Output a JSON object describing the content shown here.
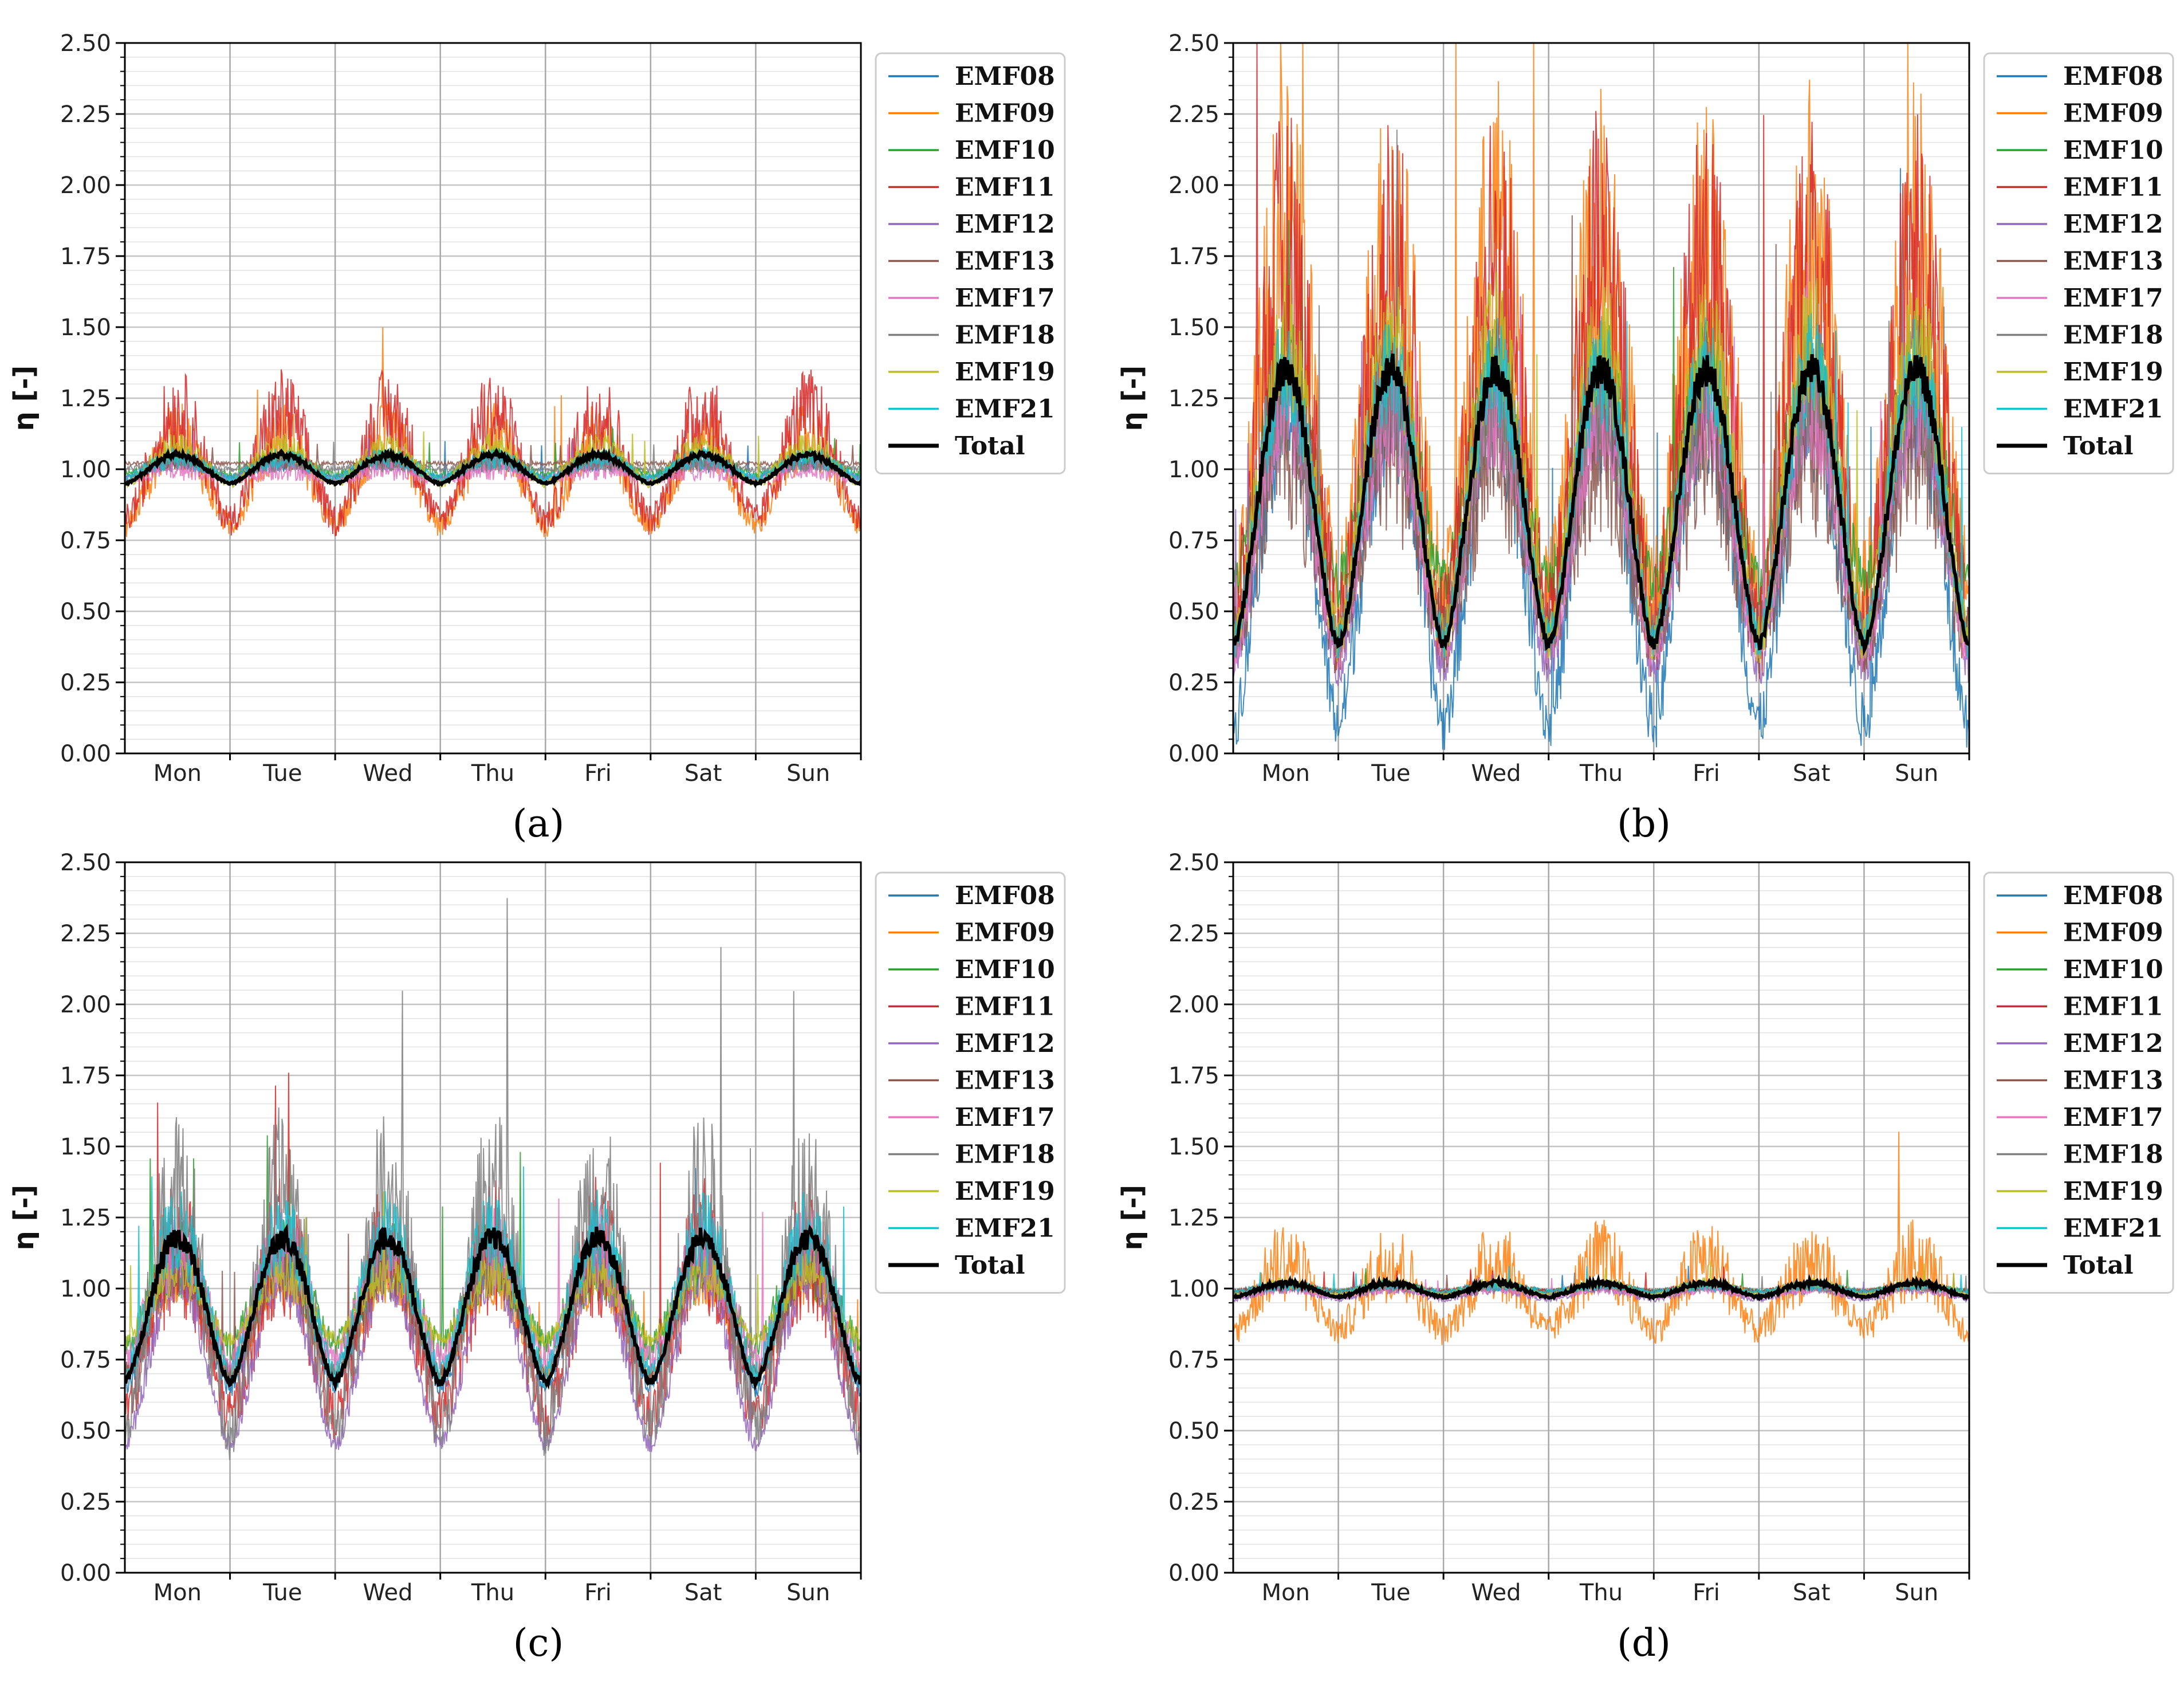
{
  "figure": {
    "colors": {
      "EMF08": "#1f77b4",
      "EMF09": "#ff7f0e",
      "EMF10": "#2ca02c",
      "EMF11": "#d62728",
      "EMF12": "#9467bd",
      "EMF13": "#8c564b",
      "EMF17": "#e377c2",
      "EMF18": "#7f7f7f",
      "EMF19": "#bcbd22",
      "EMF21": "#17becf",
      "Total": "#000000"
    }
  },
  "chart_data": [
    {
      "type": "line",
      "caption": "(a)",
      "ylabel": "η [-]",
      "ylim": [
        0,
        2.5
      ],
      "yticks": [
        "0.00",
        "0.25",
        "0.50",
        "0.75",
        "1.00",
        "1.25",
        "1.50",
        "1.75",
        "2.00",
        "2.25",
        "2.50"
      ],
      "categories": [
        "Mon",
        "Tue",
        "Wed",
        "Thu",
        "Fri",
        "Sat",
        "Sun"
      ],
      "legend": [
        "EMF08",
        "EMF09",
        "EMF10",
        "EMF11",
        "EMF12",
        "EMF13",
        "EMF17",
        "EMF18",
        "EMF19",
        "EMF21",
        "Total"
      ],
      "series": [
        {
          "name": "EMF08",
          "day": 1.03,
          "night": 0.97,
          "noise": 0.04
        },
        {
          "name": "EMF09",
          "day": 1.12,
          "night": 0.8,
          "noise": 0.12
        },
        {
          "name": "EMF10",
          "day": 1.04,
          "night": 0.98,
          "noise": 0.04
        },
        {
          "name": "EMF11",
          "day": 1.2,
          "night": 0.82,
          "noise": 0.16
        },
        {
          "name": "EMF12",
          "day": 1.02,
          "night": 0.97,
          "noise": 0.03
        },
        {
          "name": "EMF13",
          "day": 1.02,
          "night": 1.02,
          "noise": 0.02
        },
        {
          "name": "EMF17",
          "day": 1.0,
          "night": 0.96,
          "noise": 0.04
        },
        {
          "name": "EMF18",
          "day": 1.02,
          "night": 1.0,
          "noise": 0.03
        },
        {
          "name": "EMF19",
          "day": 1.08,
          "night": 0.95,
          "noise": 0.05
        },
        {
          "name": "EMF21",
          "day": 1.04,
          "night": 0.97,
          "noise": 0.04
        },
        {
          "name": "Total",
          "day": 1.05,
          "night": 0.95,
          "noise": 0.01
        }
      ]
    },
    {
      "type": "line",
      "caption": "(b)",
      "ylabel": "η [-]",
      "ylim": [
        0,
        2.5
      ],
      "yticks": [
        "0.00",
        "0.25",
        "0.50",
        "0.75",
        "1.00",
        "1.25",
        "1.50",
        "1.75",
        "2.00",
        "2.25",
        "2.50"
      ],
      "categories": [
        "Mon",
        "Tue",
        "Wed",
        "Thu",
        "Fri",
        "Sat",
        "Sun"
      ],
      "legend": [
        "EMF08",
        "EMF09",
        "EMF10",
        "EMF11",
        "EMF12",
        "EMF13",
        "EMF17",
        "EMF18",
        "EMF19",
        "EMF21",
        "Total"
      ],
      "series": [
        {
          "name": "EMF08",
          "day": 1.25,
          "night": 0.1,
          "noise": 0.3
        },
        {
          "name": "EMF09",
          "day": 1.8,
          "night": 0.55,
          "noise": 0.6
        },
        {
          "name": "EMF10",
          "day": 1.3,
          "night": 0.6,
          "noise": 0.25
        },
        {
          "name": "EMF11",
          "day": 1.7,
          "night": 0.45,
          "noise": 0.6
        },
        {
          "name": "EMF12",
          "day": 1.2,
          "night": 0.3,
          "noise": 0.2
        },
        {
          "name": "EMF13",
          "day": 1.1,
          "night": 0.4,
          "noise": 0.35
        },
        {
          "name": "EMF17",
          "day": 1.2,
          "night": 0.35,
          "noise": 0.2
        },
        {
          "name": "EMF18",
          "day": 1.3,
          "night": 0.4,
          "noise": 0.25
        },
        {
          "name": "EMF19",
          "day": 1.45,
          "night": 0.4,
          "noise": 0.25
        },
        {
          "name": "EMF21",
          "day": 1.35,
          "night": 0.4,
          "noise": 0.2
        },
        {
          "name": "Total",
          "day": 1.35,
          "night": 0.38,
          "noise": 0.06
        }
      ]
    },
    {
      "type": "line",
      "caption": "(c)",
      "ylabel": "η [-]",
      "ylim": [
        0,
        2.5
      ],
      "yticks": [
        "0.00",
        "0.25",
        "0.50",
        "0.75",
        "1.00",
        "1.25",
        "1.50",
        "1.75",
        "2.00",
        "2.25",
        "2.50"
      ],
      "categories": [
        "Mon",
        "Tue",
        "Wed",
        "Thu",
        "Fri",
        "Sat",
        "Sun"
      ],
      "legend": [
        "EMF08",
        "EMF09",
        "EMF10",
        "EMF11",
        "EMF12",
        "EMF13",
        "EMF17",
        "EMF18",
        "EMF19",
        "EMF21",
        "Total"
      ],
      "series": [
        {
          "name": "EMF08",
          "day": 1.1,
          "night": 0.65,
          "noise": 0.1
        },
        {
          "name": "EMF09",
          "day": 1.02,
          "night": 0.7,
          "noise": 0.08
        },
        {
          "name": "EMF10",
          "day": 1.1,
          "night": 0.8,
          "noise": 0.15
        },
        {
          "name": "EMF11",
          "day": 1.15,
          "night": 0.55,
          "noise": 0.25
        },
        {
          "name": "EMF12",
          "day": 1.05,
          "night": 0.45,
          "noise": 0.1
        },
        {
          "name": "EMF13",
          "day": 1.1,
          "night": 0.7,
          "noise": 0.12
        },
        {
          "name": "EMF17",
          "day": 1.15,
          "night": 0.75,
          "noise": 0.15
        },
        {
          "name": "EMF18",
          "day": 1.35,
          "night": 0.5,
          "noise": 0.3
        },
        {
          "name": "EMF19",
          "day": 1.05,
          "night": 0.82,
          "noise": 0.08
        },
        {
          "name": "EMF21",
          "day": 1.2,
          "night": 0.7,
          "noise": 0.15
        },
        {
          "name": "Total",
          "day": 1.18,
          "night": 0.67,
          "noise": 0.04
        }
      ]
    },
    {
      "type": "line",
      "caption": "(d)",
      "ylabel": "η [-]",
      "ylim": [
        0,
        2.5
      ],
      "yticks": [
        "0.00",
        "0.25",
        "0.50",
        "0.75",
        "1.00",
        "1.25",
        "1.50",
        "1.75",
        "2.00",
        "2.25",
        "2.50"
      ],
      "categories": [
        "Mon",
        "Tue",
        "Wed",
        "Thu",
        "Fri",
        "Sat",
        "Sun"
      ],
      "legend": [
        "EMF08",
        "EMF09",
        "EMF10",
        "EMF11",
        "EMF12",
        "EMF13",
        "EMF17",
        "EMF18",
        "EMF19",
        "EMF21",
        "Total"
      ],
      "series": [
        {
          "name": "EMF08",
          "day": 1.01,
          "night": 0.99,
          "noise": 0.02
        },
        {
          "name": "EMF09",
          "day": 1.1,
          "night": 0.85,
          "noise": 0.15
        },
        {
          "name": "EMF10",
          "day": 1.01,
          "night": 0.99,
          "noise": 0.02
        },
        {
          "name": "EMF11",
          "day": 1.01,
          "night": 0.99,
          "noise": 0.02
        },
        {
          "name": "EMF12",
          "day": 1.0,
          "night": 0.96,
          "noise": 0.02
        },
        {
          "name": "EMF13",
          "day": 1.01,
          "night": 0.99,
          "noise": 0.02
        },
        {
          "name": "EMF17",
          "day": 1.0,
          "night": 0.97,
          "noise": 0.02
        },
        {
          "name": "EMF18",
          "day": 1.01,
          "night": 0.98,
          "noise": 0.02
        },
        {
          "name": "EMF19",
          "day": 1.02,
          "night": 0.98,
          "noise": 0.02
        },
        {
          "name": "EMF21",
          "day": 1.01,
          "night": 0.99,
          "noise": 0.02
        },
        {
          "name": "Total",
          "day": 1.02,
          "night": 0.97,
          "noise": 0.01
        }
      ]
    }
  ]
}
